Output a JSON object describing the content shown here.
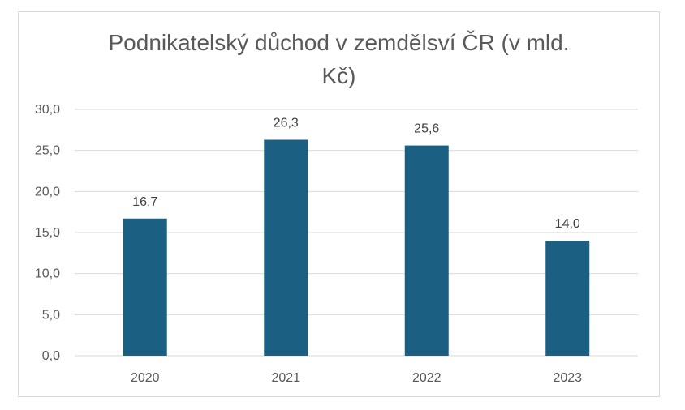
{
  "chart_data": {
    "type": "bar",
    "title": "Podnikatelský důchod v zemdělsví ČR (v mld. Kč)",
    "categories": [
      "2020",
      "2021",
      "2022",
      "2023"
    ],
    "values": [
      16.7,
      26.3,
      25.6,
      14.0
    ],
    "data_labels": [
      "16,7",
      "26,3",
      "25,6",
      "14,0"
    ],
    "yticks": [
      "0,0",
      "5,0",
      "10,0",
      "15,0",
      "20,0",
      "25,0",
      "30,0"
    ],
    "ylim": [
      0,
      30
    ],
    "xlabel": "",
    "ylabel": "",
    "grid": true,
    "legend": "none",
    "bar_color": "#1b6082",
    "gridline_color": "#d9d9d9"
  }
}
